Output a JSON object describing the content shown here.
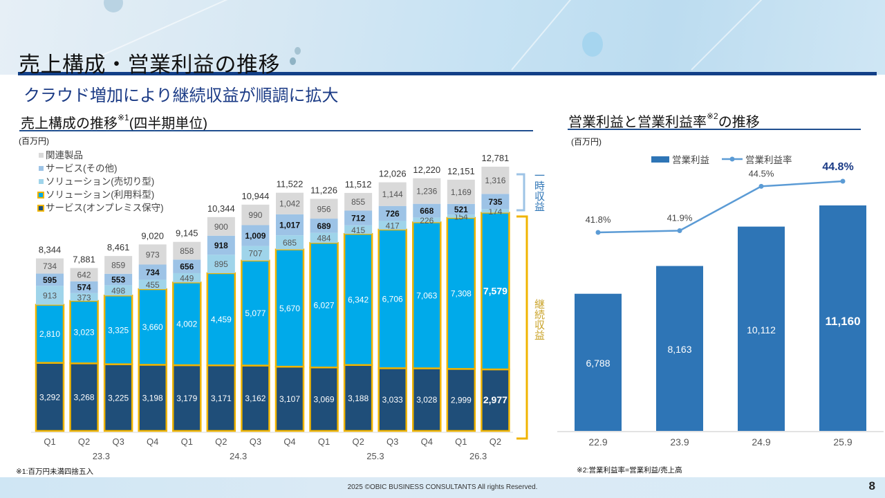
{
  "header": {
    "page_title": "売上構成・営業利益の推移",
    "subtitle": "クラウド増加により継続収益が順調に拡大"
  },
  "left_section": {
    "title": "売上構成の推移",
    "title_sup": "※1",
    "title_suffix": "(四半期単位)",
    "unit": "(百万円)",
    "bracket_temporary": "一時収益",
    "bracket_recurring": "継続収益",
    "footnote": "※1:百万円未満四捨五入"
  },
  "right_section": {
    "title": "営業利益と営業利益率",
    "title_sup": "※2",
    "title_suffix": "の推移",
    "unit": "(百万円)",
    "footnote": "※2:営業利益率=営業利益/売上高"
  },
  "colors": {
    "onprem_maintenance": "#1f4e79",
    "subscription_solution": "#00aaea",
    "one_time_solution": "#9fd4ea",
    "other_services": "#9dc3e6",
    "related_products": "#d9d9d9",
    "recurring_border": "#f0b400",
    "temporary_bracket": "#9dc3e6",
    "op_income_bar": "#2e75b6",
    "op_margin_line": "#5b9bd5",
    "title_navy": "#1a3a85"
  },
  "chart_data": [
    {
      "type": "bar",
      "stacked": true,
      "title": "売上構成の推移(四半期単位)",
      "ylabel": "(百万円)",
      "categories": [
        "Q1",
        "Q2",
        "Q3",
        "Q4",
        "Q1",
        "Q2",
        "Q3",
        "Q4",
        "Q1",
        "Q2",
        "Q3",
        "Q4",
        "Q1",
        "Q2"
      ],
      "fiscal_year_groups": [
        {
          "label": "23.3",
          "span": 4
        },
        {
          "label": "24.3",
          "span": 4
        },
        {
          "label": "25.3",
          "span": 4
        },
        {
          "label": "26.3",
          "span": 2
        }
      ],
      "series": [
        {
          "name": "サービス(オンプレミス保守)",
          "key": "onprem_maintenance",
          "values": [
            3292,
            3268,
            3225,
            3198,
            3179,
            3171,
            3162,
            3107,
            3069,
            3188,
            3033,
            3028,
            2999,
            2977
          ]
        },
        {
          "name": "ソリューション(利用料型)",
          "key": "subscription_solution",
          "values": [
            2810,
            3023,
            3325,
            3660,
            4002,
            4459,
            5077,
            5670,
            6027,
            6342,
            6706,
            7063,
            7308,
            7579
          ]
        },
        {
          "name": "ソリューション(売切り型)",
          "key": "one_time_solution",
          "values": [
            913,
            373,
            498,
            455,
            449,
            895,
            707,
            685,
            484,
            415,
            417,
            226,
            154,
            174
          ]
        },
        {
          "name": "サービス(その他)",
          "key": "other_services",
          "values": [
            595,
            574,
            553,
            734,
            656,
            918,
            1009,
            1017,
            689,
            712,
            726,
            668,
            521,
            735
          ]
        },
        {
          "name": "関連製品",
          "key": "related_products",
          "values": [
            734,
            642,
            859,
            973,
            858,
            900,
            990,
            1042,
            956,
            855,
            1144,
            1236,
            1169,
            1316
          ]
        }
      ],
      "totals": [
        8344,
        7881,
        8461,
        9020,
        9145,
        10344,
        10944,
        11522,
        11226,
        11512,
        12026,
        12220,
        12151,
        12781
      ],
      "legend": [
        "関連製品",
        "サービス(その他)",
        "ソリューション(売切り型)",
        "ソリューション(利用料型)",
        "サービス(オンプレミス保守)"
      ],
      "legend_position": "top-left",
      "ylim": [
        0,
        13000
      ],
      "grid": false
    },
    {
      "type": "bar+line",
      "title": "営業利益と営業利益率の推移",
      "ylabel": "(百万円)",
      "categories": [
        "22.9",
        "23.9",
        "24.9",
        "25.9"
      ],
      "series": [
        {
          "name": "営業利益",
          "type": "bar",
          "values": [
            6788,
            8163,
            10112,
            11160
          ],
          "labels": [
            "6,788",
            "8,163",
            "10,112",
            "11,160"
          ]
        },
        {
          "name": "営業利益率",
          "type": "line",
          "values": [
            41.8,
            41.9,
            44.5,
            44.8
          ],
          "labels": [
            "41.8%",
            "41.9%",
            "44.5%",
            "44.8%"
          ]
        }
      ],
      "legend": [
        "営業利益",
        "営業利益率"
      ],
      "legend_position": "top-center",
      "ylim": [
        0,
        12000
      ],
      "grid": false
    }
  ],
  "footer": {
    "copyright": "2025 ©OBIC BUSINESS CONSULTANTS All rights Reserved.",
    "page_number": "8"
  }
}
